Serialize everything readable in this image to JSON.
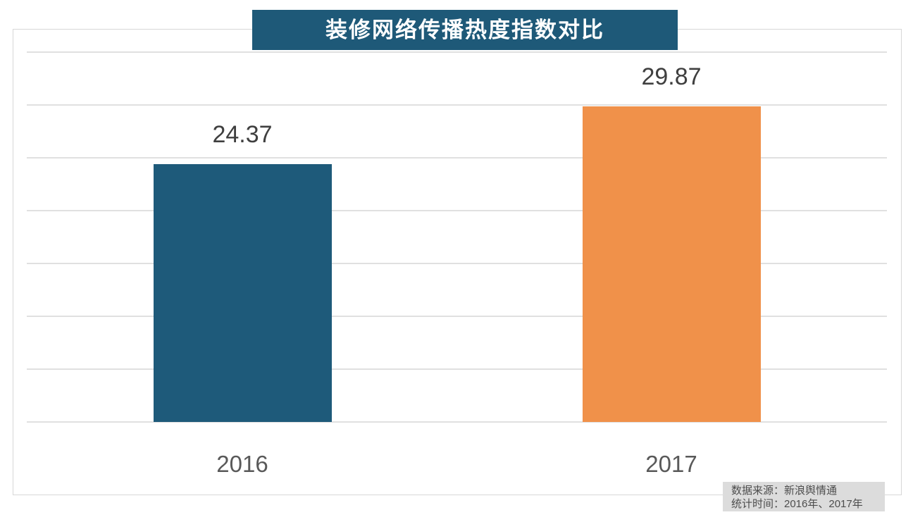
{
  "page": {
    "background_color": "#ffffff",
    "frame_border_color": "#d7d7d7",
    "gridline_color": "#e0e0e0"
  },
  "title": {
    "text": "装修网络传播热度指数对比",
    "bg_color": "#1e5978",
    "text_color": "#ffffff"
  },
  "chart_data": {
    "type": "bar",
    "title": "装修网络传播热度指数对比",
    "categories": [
      "2016",
      "2017"
    ],
    "values": [
      24.37,
      29.87
    ],
    "value_labels": [
      "24.37",
      "29.87"
    ],
    "bar_colors": [
      "#1e5a7a",
      "#f0914a"
    ],
    "xlabel": "",
    "ylabel": "",
    "ylim": [
      0,
      35
    ],
    "gridline_step": 5,
    "grid": true,
    "legend_position": "none",
    "value_label_color": "#3f3f3f",
    "category_label_color": "#595959"
  },
  "footer": {
    "source": "数据来源：新浪舆情通",
    "period": "统计时间：2016年、2017年",
    "bg_color": "#dcdcdc",
    "text_color": "#4d4d4d"
  }
}
